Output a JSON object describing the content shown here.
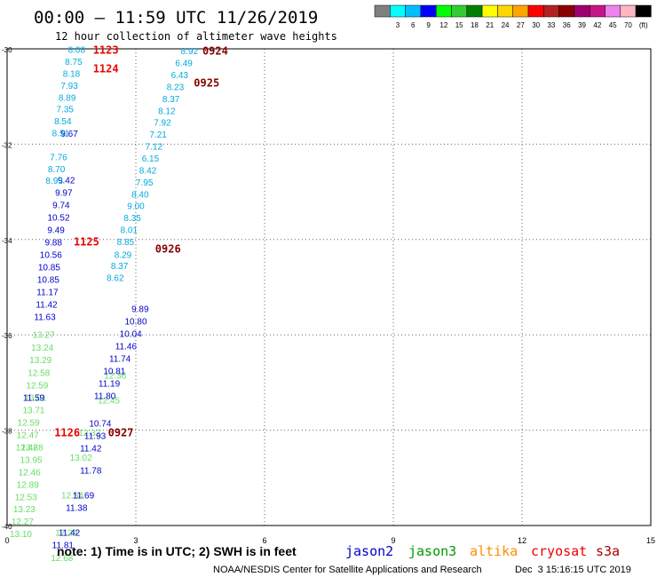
{
  "header": {
    "title": "00:00 – 11:59 UTC 11/26/2019",
    "subtitle": "12 hour collection of altimeter wave heights"
  },
  "legend": {
    "swatches": [
      {
        "label": "",
        "color": "#808080"
      },
      {
        "label": "3",
        "color": "#00ffff"
      },
      {
        "label": "6",
        "color": "#00bfff"
      },
      {
        "label": "9",
        "color": "#0000ff"
      },
      {
        "label": "12",
        "color": "#00ff00"
      },
      {
        "label": "15",
        "color": "#32cd32"
      },
      {
        "label": "18",
        "color": "#008000"
      },
      {
        "label": "21",
        "color": "#ffff00"
      },
      {
        "label": "24",
        "color": "#ffd700"
      },
      {
        "label": "27",
        "color": "#ffa500"
      },
      {
        "label": "30",
        "color": "#ff0000"
      },
      {
        "label": "33",
        "color": "#b22222"
      },
      {
        "label": "36",
        "color": "#8b0000"
      },
      {
        "label": "39",
        "color": "#a0006e"
      },
      {
        "label": "42",
        "color": "#c71585"
      },
      {
        "label": "45",
        "color": "#ee82ee"
      },
      {
        "label": "70",
        "color": "#ffb6c1"
      },
      {
        "label": "(ft)",
        "color": "#000000"
      }
    ]
  },
  "footer": {
    "note": "note: 1) Time is in UTC; 2) SWH is in feet",
    "credit": "NOAA/NESDIS Center for Satellite Applications and Research",
    "timestamp": "Dec  3 15:16:15 UTC 2019",
    "satellites": [
      {
        "name": "jason2",
        "color": "#0000cc"
      },
      {
        "name": "jason3",
        "color": "#009900"
      },
      {
        "name": "altika",
        "color": "#ff8c00"
      },
      {
        "name": "cryosat",
        "color": "#ee0000"
      },
      {
        "name": "s3a",
        "color": "#aa0000"
      }
    ]
  },
  "chart_data": {
    "type": "scatter",
    "title": "00:00 – 11:59 UTC 11/26/2019",
    "xlim": [
      0,
      15
    ],
    "ylim": [
      -40,
      -30
    ],
    "xticks": [
      "0",
      "3",
      "6",
      "9",
      "12",
      "15"
    ],
    "yticks": [
      "-30",
      "-32",
      "-34",
      "-36",
      "-38",
      "-40"
    ],
    "grid": true,
    "colors": {
      "jason2": "#0000cc",
      "jason3": "#66dd66",
      "s3a": "#00aadd",
      "time_red": "#ee0000",
      "time_maroon": "#880000"
    },
    "time_labels": [
      {
        "text": "1123",
        "x": 2.3,
        "y": -30.03,
        "color": "#ee0000"
      },
      {
        "text": "1124",
        "x": 2.3,
        "y": -30.42,
        "color": "#ee0000"
      },
      {
        "text": "1125",
        "x": 1.85,
        "y": -34.05,
        "color": "#ee0000"
      },
      {
        "text": "1126",
        "x": 1.4,
        "y": -38.05,
        "color": "#ee0000"
      },
      {
        "text": "0924",
        "x": 4.85,
        "y": -30.05,
        "color": "#880000"
      },
      {
        "text": "0925",
        "x": 4.65,
        "y": -30.72,
        "color": "#880000"
      },
      {
        "text": "0926",
        "x": 3.75,
        "y": -34.2,
        "color": "#880000"
      },
      {
        "text": "0927",
        "x": 2.65,
        "y": -38.05,
        "color": "#880000"
      }
    ],
    "series": [
      {
        "name": "jason3",
        "color": "#66dd66",
        "values": [
          [
            0.85,
            -36.0,
            "13.27"
          ],
          [
            0.82,
            -36.27,
            "13.24"
          ],
          [
            0.78,
            -36.53,
            "13.29"
          ],
          [
            0.74,
            -36.8,
            "12.58"
          ],
          [
            0.7,
            -37.06,
            "12.59"
          ],
          [
            0.66,
            -37.32,
            "13.01"
          ],
          [
            0.62,
            -37.58,
            "13.71"
          ],
          [
            0.58,
            -38.36,
            "13.88"
          ],
          [
            0.56,
            -38.62,
            "13.95"
          ],
          [
            0.52,
            -38.88,
            "12.46"
          ],
          [
            0.48,
            -39.14,
            "12.89"
          ],
          [
            0.44,
            -39.4,
            "12.53"
          ],
          [
            0.4,
            -39.66,
            "13.23"
          ],
          [
            0.36,
            -39.92,
            "12.27"
          ],
          [
            0.32,
            -40.18,
            "13.10"
          ],
          [
            0.5,
            -37.84,
            "12.59"
          ],
          [
            0.48,
            -38.1,
            "12.47"
          ],
          [
            0.46,
            -38.36,
            "12.42"
          ],
          [
            2.52,
            -36.85,
            "12.36"
          ],
          [
            2.37,
            -37.37,
            "12.45"
          ],
          [
            1.92,
            -38.05,
            "12.32"
          ],
          [
            1.72,
            -38.58,
            "13.02"
          ],
          [
            1.52,
            -39.37,
            "12.54"
          ],
          [
            1.38,
            -40.15,
            "12.29"
          ],
          [
            1.28,
            -40.68,
            "12.68"
          ]
        ]
      },
      {
        "name": "jason2",
        "color": "#0000cc",
        "values": [
          [
            1.45,
            -31.78,
            "9.67"
          ],
          [
            1.38,
            -32.76,
            "9.42"
          ],
          [
            1.32,
            -33.02,
            "9.97"
          ],
          [
            1.26,
            -33.28,
            "9.74"
          ],
          [
            1.2,
            -33.54,
            "10.52"
          ],
          [
            1.14,
            -33.8,
            "9.49"
          ],
          [
            1.08,
            -34.06,
            "9.88"
          ],
          [
            1.02,
            -34.32,
            "10.56"
          ],
          [
            0.98,
            -34.58,
            "10.85"
          ],
          [
            0.96,
            -34.84,
            "10.85"
          ],
          [
            0.94,
            -35.1,
            "11.17"
          ],
          [
            0.92,
            -35.36,
            "11.42"
          ],
          [
            0.88,
            -35.62,
            "11.63"
          ],
          [
            0.62,
            -37.32,
            "11.59"
          ],
          [
            3.1,
            -35.46,
            "9.89"
          ],
          [
            3.0,
            -35.72,
            "10.80"
          ],
          [
            2.88,
            -35.98,
            "10.04"
          ],
          [
            2.77,
            -36.24,
            "11.46"
          ],
          [
            2.63,
            -36.5,
            "11.74"
          ],
          [
            2.5,
            -36.76,
            "10.81"
          ],
          [
            2.38,
            -37.02,
            "11.19"
          ],
          [
            2.28,
            -37.28,
            "11.80"
          ],
          [
            2.17,
            -37.86,
            "10.74"
          ],
          [
            2.05,
            -38.12,
            "11.93"
          ],
          [
            1.95,
            -38.38,
            "11.42"
          ],
          [
            1.95,
            -38.85,
            "11.78"
          ],
          [
            1.78,
            -39.37,
            "11.69"
          ],
          [
            1.62,
            -39.63,
            "11.38"
          ],
          [
            1.45,
            -40.15,
            "11.42"
          ],
          [
            1.3,
            -40.41,
            "11.81"
          ]
        ]
      },
      {
        "name": "s3a",
        "color": "#00aadd",
        "values": [
          [
            1.62,
            -30.02,
            "8.08"
          ],
          [
            1.55,
            -30.27,
            "8.75"
          ],
          [
            1.5,
            -30.52,
            "8.18"
          ],
          [
            1.45,
            -30.77,
            "7.93"
          ],
          [
            1.4,
            -31.02,
            "8.89"
          ],
          [
            1.35,
            -31.27,
            "7.35"
          ],
          [
            1.3,
            -31.52,
            "8.54"
          ],
          [
            1.25,
            -31.77,
            "8.51"
          ],
          [
            1.2,
            -32.27,
            "7.76"
          ],
          [
            1.15,
            -32.52,
            "8.70"
          ],
          [
            1.1,
            -32.77,
            "8.93"
          ],
          [
            4.25,
            -30.05,
            "8.92"
          ],
          [
            4.12,
            -30.3,
            "6.49"
          ],
          [
            4.02,
            -30.55,
            "6.43"
          ],
          [
            3.92,
            -30.8,
            "8.23"
          ],
          [
            3.82,
            -31.05,
            "8.37"
          ],
          [
            3.72,
            -31.3,
            "8.12"
          ],
          [
            3.62,
            -31.55,
            "7.92"
          ],
          [
            3.52,
            -31.8,
            "7.21"
          ],
          [
            3.42,
            -32.05,
            "7.12"
          ],
          [
            3.34,
            -32.3,
            "6.15"
          ],
          [
            3.28,
            -32.55,
            "8.42"
          ],
          [
            3.2,
            -32.8,
            "7.95"
          ],
          [
            3.1,
            -33.05,
            "8.40"
          ],
          [
            3.0,
            -33.3,
            "9.00"
          ],
          [
            2.92,
            -33.55,
            "8.35"
          ],
          [
            2.84,
            -33.8,
            "8.01"
          ],
          [
            2.76,
            -34.05,
            "8.85"
          ],
          [
            2.7,
            -34.32,
            "8.29"
          ],
          [
            2.62,
            -34.55,
            "8.37"
          ],
          [
            2.52,
            -34.8,
            "8.62"
          ]
        ]
      }
    ]
  }
}
